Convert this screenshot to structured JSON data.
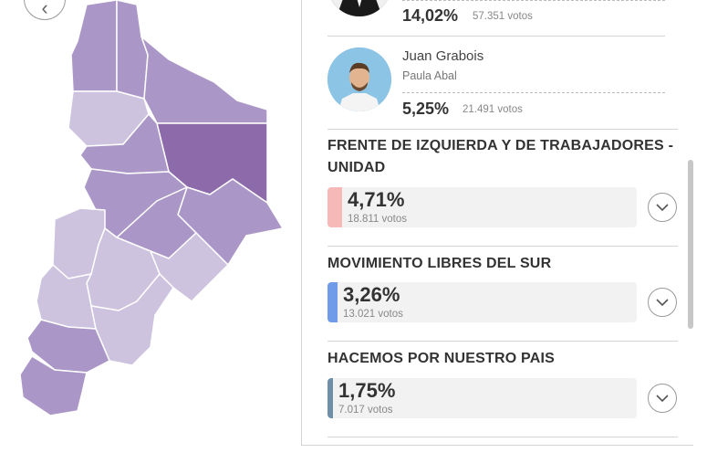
{
  "nav": {
    "back_icon": "chevron-left-icon"
  },
  "map": {
    "region": "province departments map",
    "colors": {
      "dark": "#8d6aaa",
      "medium": "#ab97c7",
      "light": "#cdc3df",
      "border": "#ffffff"
    }
  },
  "candidates": [
    {
      "name": "",
      "running_mate": "",
      "percent": "14,02%",
      "votes": "57.351 votos"
    },
    {
      "name": "Juan Grabois",
      "running_mate": "Paula Abal",
      "percent": "5,25%",
      "votes": "21.491 votos"
    }
  ],
  "parties": [
    {
      "name": "FRENTE DE IZQUIERDA Y DE TRABAJADORES - UNIDAD",
      "percent": "4,71%",
      "value": 4.71,
      "votes": "18.811 votos",
      "color": "#f7b8b8"
    },
    {
      "name": "MOVIMIENTO LIBRES DEL SUR",
      "percent": "3,26%",
      "value": 3.26,
      "votes": "13.021 votos",
      "color": "#6f9be8"
    },
    {
      "name": "HACEMOS POR NUESTRO PAIS",
      "percent": "1,75%",
      "value": 1.75,
      "votes": "7.017 votos",
      "color": "#6f8fa8"
    }
  ]
}
